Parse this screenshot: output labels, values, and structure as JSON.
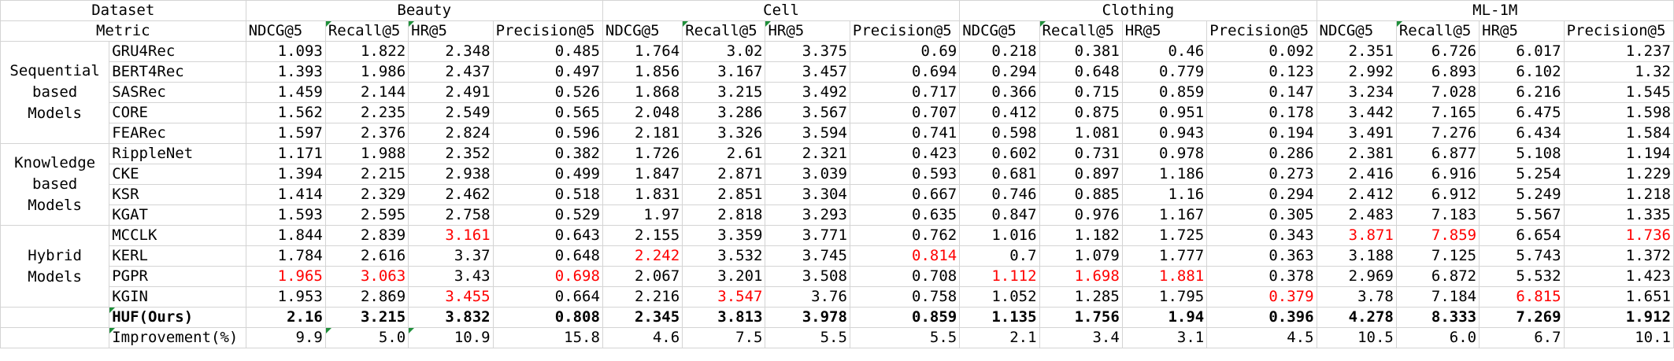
{
  "header": {
    "dataset_label": "Dataset",
    "metric_label": "Metric",
    "datasets": [
      "Beauty",
      "Cell",
      "Clothing",
      "ML-1M"
    ],
    "metrics": [
      "NDCG@5",
      "Recall@5",
      "HR@5",
      "Precision@5"
    ]
  },
  "groups": [
    {
      "label": "Sequential based Models",
      "rows": [
        {
          "model": "GRU4Rec",
          "values": [
            "1.093",
            "1.822",
            "2.348",
            "0.485",
            "1.764",
            "3.02",
            "3.375",
            "0.69",
            "0.218",
            "0.381",
            "0.46",
            "0.092",
            "2.351",
            "6.726",
            "6.017",
            "1.237"
          ]
        },
        {
          "model": "BERT4Rec",
          "values": [
            "1.393",
            "1.986",
            "2.437",
            "0.497",
            "1.856",
            "3.167",
            "3.457",
            "0.694",
            "0.294",
            "0.648",
            "0.779",
            "0.123",
            "2.992",
            "6.893",
            "6.102",
            "1.32"
          ]
        },
        {
          "model": "SASRec",
          "values": [
            "1.459",
            "2.144",
            "2.491",
            "0.526",
            "1.868",
            "3.215",
            "3.492",
            "0.717",
            "0.366",
            "0.715",
            "0.859",
            "0.147",
            "3.234",
            "7.028",
            "6.216",
            "1.545"
          ]
        },
        {
          "model": "CORE",
          "values": [
            "1.562",
            "2.235",
            "2.549",
            "0.565",
            "2.048",
            "3.286",
            "3.567",
            "0.707",
            "0.412",
            "0.875",
            "0.951",
            "0.178",
            "3.442",
            "7.165",
            "6.475",
            "1.598"
          ]
        },
        {
          "model": "FEARec",
          "values": [
            "1.597",
            "2.376",
            "2.824",
            "0.596",
            "2.181",
            "3.326",
            "3.594",
            "0.741",
            "0.598",
            "1.081",
            "0.943",
            "0.194",
            "3.491",
            "7.276",
            "6.434",
            "1.584"
          ]
        }
      ]
    },
    {
      "label": "Knowledge based Models",
      "rows": [
        {
          "model": "RippleNet",
          "values": [
            "1.171",
            "1.988",
            "2.352",
            "0.382",
            "1.726",
            "2.61",
            "2.321",
            "0.423",
            "0.602",
            "0.731",
            "0.978",
            "0.286",
            "2.381",
            "6.877",
            "5.108",
            "1.194"
          ]
        },
        {
          "model": "CKE",
          "values": [
            "1.394",
            "2.215",
            "2.938",
            "0.499",
            "1.847",
            "2.871",
            "3.039",
            "0.593",
            "0.681",
            "0.897",
            "1.186",
            "0.273",
            "2.416",
            "6.916",
            "5.254",
            "1.229"
          ]
        },
        {
          "model": "KSR",
          "values": [
            "1.414",
            "2.329",
            "2.462",
            "0.518",
            "1.831",
            "2.851",
            "3.304",
            "0.667",
            "0.746",
            "0.885",
            "1.16",
            "0.294",
            "2.412",
            "6.912",
            "5.249",
            "1.218"
          ]
        },
        {
          "model": "KGAT",
          "values": [
            "1.593",
            "2.595",
            "2.758",
            "0.529",
            "1.97",
            "2.818",
            "3.293",
            "0.635",
            "0.847",
            "0.976",
            "1.167",
            "0.305",
            "2.483",
            "7.183",
            "5.567",
            "1.335"
          ]
        }
      ]
    },
    {
      "label": "Hybrid Models",
      "rows": [
        {
          "model": "MCCLK",
          "values": [
            "1.844",
            "2.839",
            "3.161",
            "0.643",
            "2.155",
            "3.359",
            "3.771",
            "0.762",
            "1.016",
            "1.182",
            "1.725",
            "0.343",
            "3.871",
            "7.859",
            "6.654",
            "1.736"
          ]
        },
        {
          "model": "KERL",
          "values": [
            "1.784",
            "2.616",
            "3.37",
            "0.648",
            "2.242",
            "3.532",
            "3.745",
            "0.814",
            "0.7",
            "1.079",
            "1.777",
            "0.363",
            "3.188",
            "7.125",
            "5.743",
            "1.372"
          ]
        },
        {
          "model": "PGPR",
          "values": [
            "1.965",
            "3.063",
            "3.43",
            "0.698",
            "2.067",
            "3.201",
            "3.508",
            "0.708",
            "1.112",
            "1.698",
            "1.881",
            "0.378",
            "2.969",
            "6.872",
            "5.532",
            "1.423"
          ]
        },
        {
          "model": "KGIN",
          "values": [
            "1.953",
            "2.869",
            "3.455",
            "0.664",
            "2.216",
            "3.547",
            "3.76",
            "0.758",
            "1.052",
            "1.285",
            "1.795",
            "0.379",
            "3.78",
            "7.184",
            "6.815",
            "1.651"
          ]
        }
      ]
    }
  ],
  "ours": {
    "model": "HUF(Ours)",
    "values": [
      "2.16",
      "3.215",
      "3.832",
      "0.808",
      "2.345",
      "3.813",
      "3.978",
      "0.859",
      "1.135",
      "1.756",
      "1.94",
      "0.396",
      "4.278",
      "8.333",
      "7.269",
      "1.912"
    ]
  },
  "improvement": {
    "model": "Improvement(%)",
    "values": [
      "9.9",
      "5.0",
      "10.9",
      "15.8",
      "4.6",
      "7.5",
      "5.5",
      "5.5",
      "2.1",
      "3.4",
      "3.1",
      "4.5",
      "10.5",
      "6.0",
      "6.7",
      "10.1"
    ]
  },
  "styles": {
    "highlight_color": "#ff0000",
    "grid_color": "#d4d4d4",
    "marker_color": "#1f8f3a"
  },
  "highlights": [
    [
      9,
      2
    ],
    [
      9,
      12
    ],
    [
      9,
      13
    ],
    [
      9,
      15
    ],
    [
      10,
      4
    ],
    [
      10,
      7
    ],
    [
      11,
      0
    ],
    [
      11,
      1
    ],
    [
      11,
      3
    ],
    [
      11,
      8
    ],
    [
      11,
      9
    ],
    [
      11,
      10
    ],
    [
      12,
      2
    ],
    [
      12,
      5
    ],
    [
      12,
      11
    ],
    [
      12,
      14
    ]
  ]
}
